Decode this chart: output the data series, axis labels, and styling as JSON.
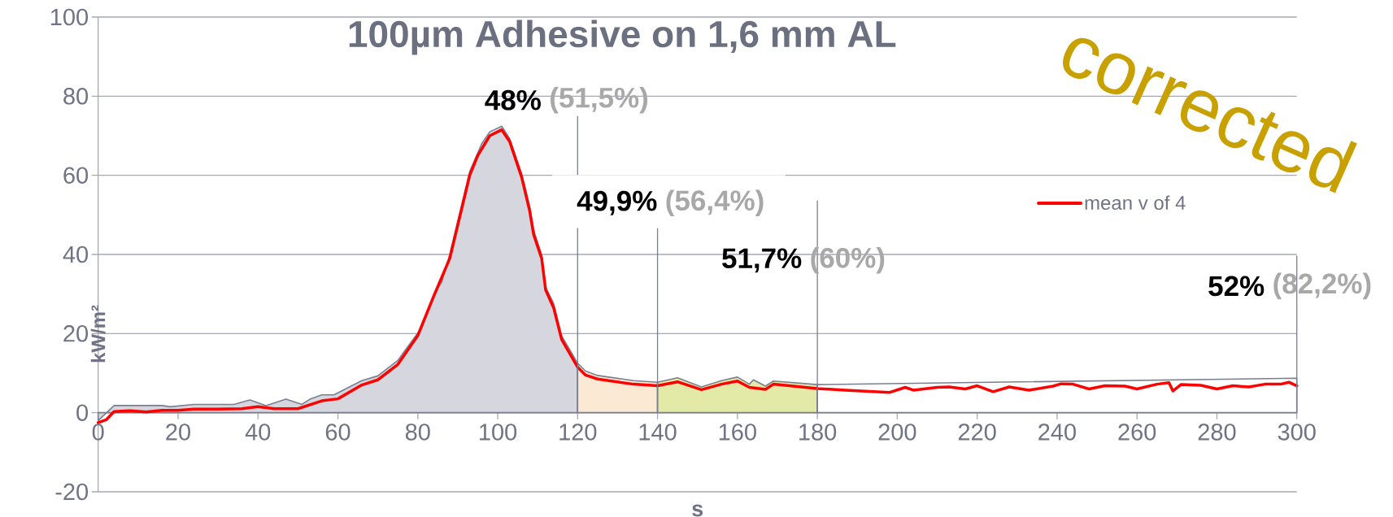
{
  "chart_data": {
    "type": "area",
    "title": "100µm Adhesive on 1,6 mm AL",
    "xlabel": "s",
    "ylabel": "kW/m²",
    "xlim": [
      0,
      300
    ],
    "ylim": [
      -20,
      100
    ],
    "xticks": [
      0,
      20,
      40,
      60,
      80,
      100,
      120,
      140,
      160,
      180,
      200,
      220,
      240,
      260,
      280,
      300
    ],
    "yticks": [
      -20,
      0,
      20,
      40,
      60,
      80,
      100
    ],
    "grid": "y",
    "legend": "right",
    "series": [
      {
        "color": "#d5d6de",
        "x": [
          0,
          4,
          16,
          18,
          24,
          34,
          38,
          42,
          47,
          51,
          53,
          56,
          59,
          66,
          70,
          75,
          77,
          81,
          83,
          85,
          86,
          88,
          93,
          96,
          98,
          101,
          103,
          106,
          108,
          109,
          111,
          112,
          114,
          116,
          118,
          120
        ],
        "values": [
          -2,
          1.8,
          1.8,
          1.5,
          2.1,
          2.1,
          3.2,
          1.8,
          3.4,
          2.1,
          3.4,
          4.5,
          4.5,
          8.1,
          9.3,
          13.2,
          16,
          21.5,
          27,
          31.5,
          33,
          40,
          61,
          68,
          71,
          72.4,
          69.3,
          60.4,
          52.2,
          46.1,
          39.9,
          31.7,
          27.6,
          19.4,
          16,
          12.5
        ]
      },
      {
        "color": "#fce9d4",
        "x": [
          120,
          122,
          125,
          134,
          140
        ],
        "values": [
          12.5,
          10.5,
          9.4,
          8.1,
          7.7
        ]
      },
      {
        "color": "#e3eaa8",
        "x": [
          140,
          145,
          151,
          156,
          160,
          163,
          164,
          167,
          169,
          180
        ],
        "values": [
          7.7,
          8.8,
          6.5,
          8.1,
          9,
          7.2,
          8.3,
          6.7,
          8,
          7.1
        ]
      },
      {
        "color": "#ffffff",
        "x": [
          180,
          300
        ],
        "values": [
          7.1,
          8.7
        ]
      },
      {
        "type": "line",
        "name": "mean v of 4",
        "color": "#ff0000",
        "x": [
          0,
          2,
          4,
          8,
          12,
          16,
          20,
          24,
          30,
          36,
          40,
          44,
          50,
          56,
          60,
          66,
          70,
          75,
          80,
          84,
          88,
          93,
          95,
          98,
          101,
          103,
          106,
          108,
          109,
          111,
          112,
          114,
          116,
          118,
          120,
          122,
          125,
          134,
          140,
          145,
          151,
          156,
          160,
          163,
          167,
          169,
          180,
          187,
          198,
          202,
          204,
          210,
          213,
          217,
          220,
          224,
          228,
          233,
          239,
          241,
          244,
          248,
          252,
          257,
          260,
          265,
          268,
          269,
          271,
          276,
          280,
          284,
          288,
          292,
          296,
          298,
          300
        ],
        "values": [
          -2.5,
          -1.8,
          0.3,
          0.5,
          0.2,
          0.6,
          0.6,
          0.9,
          0.9,
          1,
          1.5,
          1,
          1,
          3,
          3.5,
          7,
          8.3,
          12.2,
          19.5,
          29.5,
          39,
          60,
          65,
          70,
          71.5,
          68.5,
          59.5,
          51,
          45,
          39,
          31,
          26.5,
          18.5,
          15,
          11.5,
          9.5,
          8.5,
          7.2,
          6.8,
          7.8,
          5.8,
          7.2,
          8,
          6.4,
          5.9,
          7.2,
          6.1,
          5.7,
          5.1,
          6.4,
          5.7,
          6.4,
          6.5,
          6,
          6.8,
          5.3,
          6.5,
          5.7,
          6.7,
          7.3,
          7.2,
          6,
          6.8,
          6.7,
          6,
          7.2,
          7.6,
          5.5,
          7.1,
          6.9,
          6,
          6.8,
          6.5,
          7.2,
          7.2,
          7.7,
          6.8
        ]
      }
    ],
    "ref_lines": [
      {
        "axis": "x",
        "value": 120
      },
      {
        "axis": "x",
        "value": 140
      },
      {
        "axis": "x",
        "value": 180
      },
      {
        "axis": "x",
        "value": 300
      }
    ],
    "annotations": [
      "48%",
      "(51,5%)",
      "49,9%",
      "(56,4%)",
      "51,7%",
      "(60%)",
      "52%",
      "(82,2%)",
      "corrected"
    ]
  }
}
